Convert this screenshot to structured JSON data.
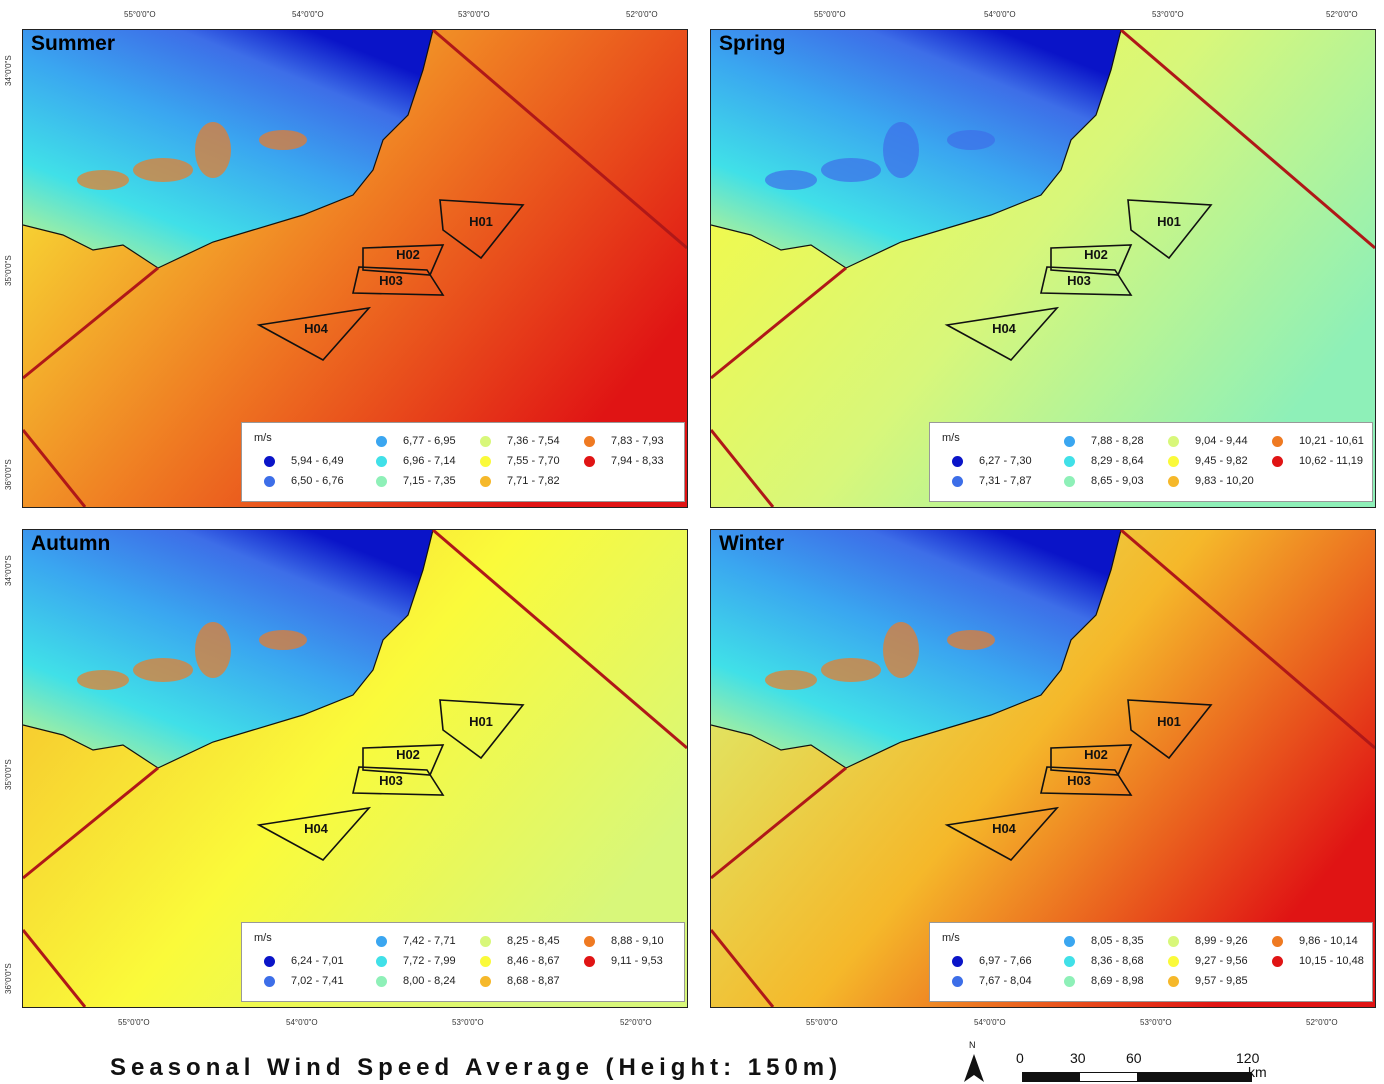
{
  "figure_title": "Seasonal Wind Speed Average (Height: 150m)",
  "north_arrow_label": "N",
  "scale_bar": {
    "labels": [
      "0",
      "30",
      "60",
      "120"
    ],
    "unit": "km"
  },
  "top_longitude_ticks": [
    "55°0'0\"O",
    "54°0'0\"O",
    "53°0'0\"O",
    "52°0'0\"O"
  ],
  "bottom_longitude_ticks": [
    "55°0'0\"O",
    "54°0'0\"O",
    "53°0'0\"O",
    "52°0'0\"O"
  ],
  "latitude_ticks": [
    "34°0'0\"S",
    "35°0'0\"S",
    "36°0'0\"S"
  ],
  "area_labels": [
    "H01",
    "H02",
    "H03",
    "H04"
  ],
  "colors": [
    "#0a14c8",
    "#3d6ee8",
    "#3aa6f0",
    "#40e0e8",
    "#8ef0b8",
    "#d8f77a",
    "#fafa3a",
    "#f5b82a",
    "#ef7a22",
    "#e01414"
  ],
  "panels": [
    {
      "title": "Summer",
      "legend_unit": "m/s",
      "classes": [
        "5,94 - 6,49",
        "6,50 - 6,76",
        "6,77 - 6,95",
        "6,96 - 7,14",
        "7,15 - 7,35",
        "7,36 - 7,54",
        "7,55 - 7,70",
        "7,71 - 7,82",
        "7,83 - 7,93",
        "7,94 - 8,33"
      ]
    },
    {
      "title": "Spring",
      "legend_unit": "m/s",
      "classes": [
        "6,27 - 7,30",
        "7,31 - 7,87",
        "7,88 - 8,28",
        "8,29 - 8,64",
        "8,65 - 9,03",
        "9,04 - 9,44",
        "9,45 - 9,82",
        "9,83 - 10,20",
        "10,21 - 10,61",
        "10,62 - 11,19"
      ]
    },
    {
      "title": "Autumn",
      "legend_unit": "m/s",
      "classes": [
        "6,24 - 7,01",
        "7,02 - 7,41",
        "7,42 - 7,71",
        "7,72 - 7,99",
        "8,00 - 8,24",
        "8,25 - 8,45",
        "8,46 - 8,67",
        "8,68 - 8,87",
        "8,88 - 9,10",
        "9,11 - 9,53"
      ]
    },
    {
      "title": "Winter",
      "legend_unit": "m/s",
      "classes": [
        "6,97 - 7,66",
        "7,67 - 8,04",
        "8,05 - 8,35",
        "8,36 - 8,68",
        "8,69 - 8,98",
        "8,99 - 9,26",
        "9,27 - 9,56",
        "9,57 - 9,85",
        "9,86 - 10,14",
        "10,15 - 10,48"
      ]
    }
  ]
}
